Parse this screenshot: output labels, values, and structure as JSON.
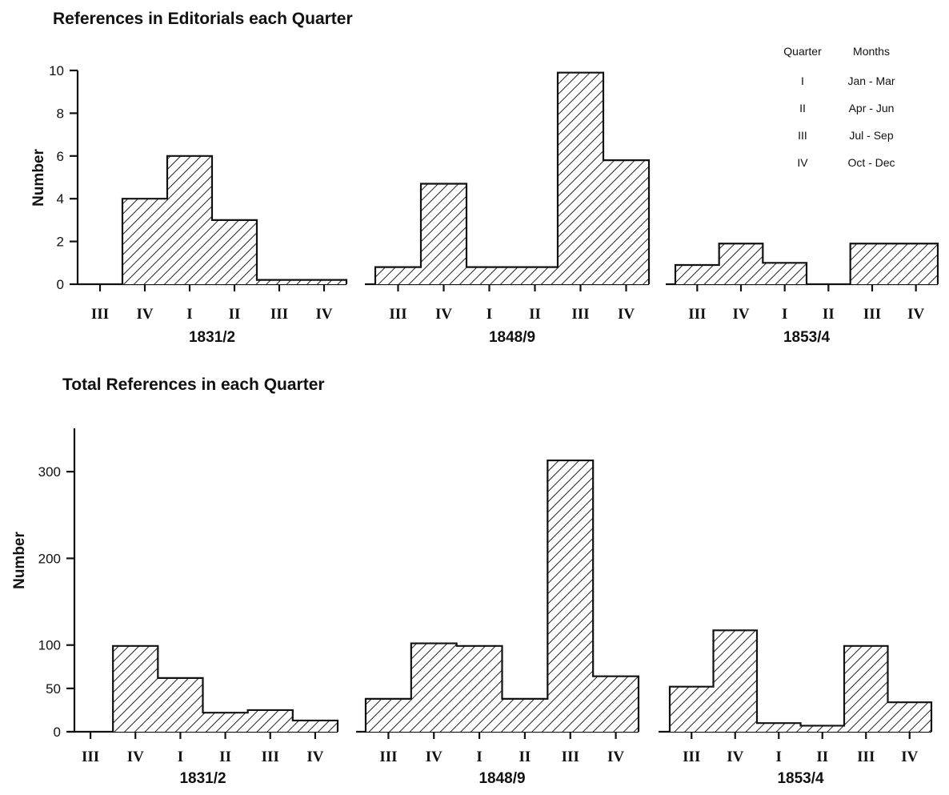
{
  "chart_data": [
    {
      "type": "bar",
      "title": "References in Editorials each Quarter",
      "ylabel": "Number",
      "ylim": [
        0,
        10
      ],
      "yticks": [
        0,
        2,
        4,
        6,
        8,
        10
      ],
      "groups": [
        {
          "name": "1831/2",
          "quarters": [
            "III",
            "IV",
            "I",
            "II",
            "III",
            "IV"
          ],
          "values": [
            0,
            4,
            6,
            3,
            0.2,
            0.2
          ]
        },
        {
          "name": "1848/9",
          "quarters": [
            "III",
            "IV",
            "I",
            "II",
            "III",
            "IV"
          ],
          "values": [
            0.8,
            4.7,
            0.8,
            0.8,
            9.9,
            5.8
          ]
        },
        {
          "name": "1853/4",
          "quarters": [
            "III",
            "IV",
            "I",
            "II",
            "III",
            "IV"
          ],
          "values": [
            0.9,
            1.9,
            1,
            0,
            1.9,
            1.9
          ]
        }
      ],
      "legend": {
        "header": [
          "Quarter",
          "Months"
        ],
        "rows": [
          [
            "I",
            "Jan - Mar"
          ],
          [
            "II",
            "Apr - Jun"
          ],
          [
            "III",
            "Jul - Sep"
          ],
          [
            "IV",
            "Oct - Dec"
          ]
        ],
        "placement": "top-right"
      }
    },
    {
      "type": "bar",
      "title": "Total References in each Quarter",
      "ylabel": "Number",
      "ylim": [
        0,
        350
      ],
      "yticks": [
        0,
        50,
        100,
        200,
        300
      ],
      "groups": [
        {
          "name": "1831/2",
          "quarters": [
            "III",
            "IV",
            "I",
            "II",
            "III",
            "IV"
          ],
          "values": [
            0,
            99,
            62,
            22,
            25,
            13
          ]
        },
        {
          "name": "1848/9",
          "quarters": [
            "III",
            "IV",
            "I",
            "II",
            "III",
            "IV"
          ],
          "values": [
            38,
            102,
            99,
            38,
            313,
            64
          ]
        },
        {
          "name": "1853/4",
          "quarters": [
            "III",
            "IV",
            "I",
            "II",
            "III",
            "IV"
          ],
          "values": [
            52,
            117,
            10,
            7,
            99,
            34
          ]
        }
      ]
    }
  ]
}
